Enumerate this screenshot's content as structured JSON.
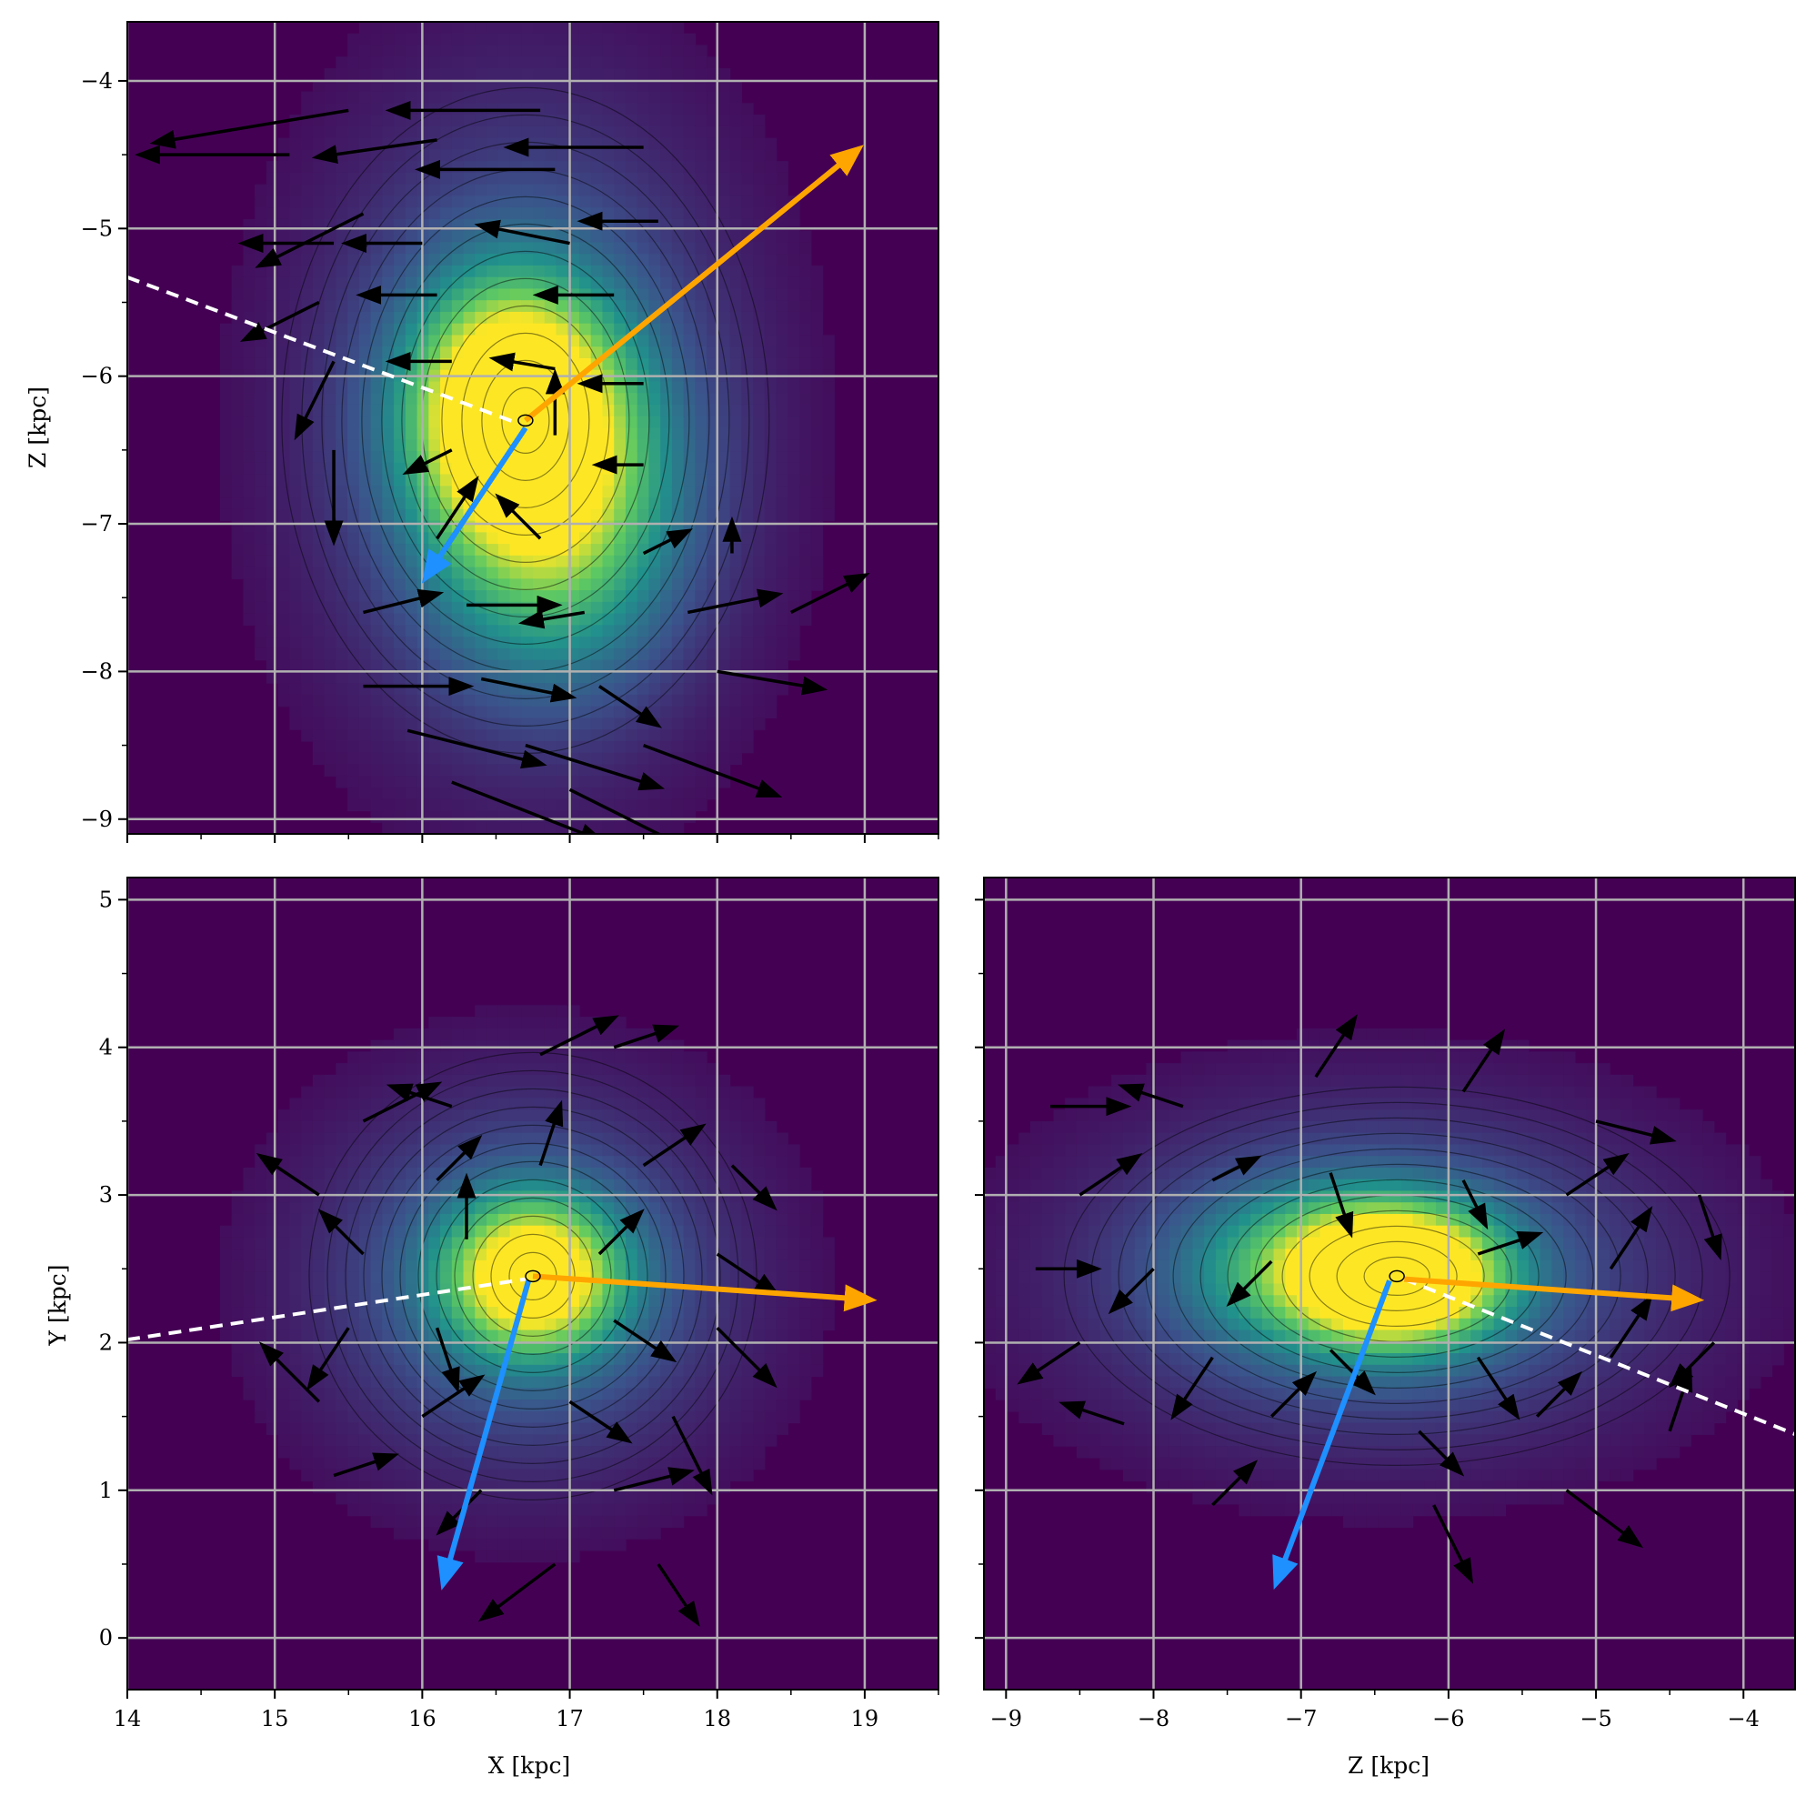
{
  "colors": {
    "density_low": "#440154",
    "density_mid": "#21908c",
    "density_high": "#fde725",
    "grid": "#b0b0b0",
    "orange_arrow": "#ffa500",
    "blue_arrow": "#1e90ff",
    "dashed_line": "#ffffff",
    "quiver": "#000000"
  },
  "chart_data": [
    {
      "panel": "top-left",
      "type": "heatmap",
      "overlays": [
        "contours",
        "quiver",
        "principal-axis-arrows",
        "dashed-line"
      ],
      "xlabel": "",
      "ylabel": "Z [kpc]",
      "xlim": [
        14.0,
        19.5
      ],
      "ylim": [
        -9.1,
        -3.6
      ],
      "y_inverted": true,
      "xticks": [],
      "xtick_values": [
        14,
        15,
        16,
        17,
        18,
        19
      ],
      "yticks": [
        "−4",
        "−5",
        "−6",
        "−7",
        "−8",
        "−9"
      ],
      "ytick_values": [
        -4,
        -5,
        -6,
        -7,
        -8,
        -9
      ],
      "grid": true,
      "density_peaks": [
        {
          "x": 16.6,
          "y": -6.2,
          "sx": 0.45,
          "sy": 0.55,
          "w": 1.0
        },
        {
          "x": 16.9,
          "y": -6.9,
          "sx": 0.55,
          "sy": 0.75,
          "w": 0.6
        },
        {
          "x": 16.7,
          "y": -6.3,
          "sx": 1.0,
          "sy": 1.5,
          "w": 0.35
        }
      ],
      "contour_center": {
        "x": 16.7,
        "y": -6.3
      },
      "arrows": [
        {
          "color": "orange",
          "from": [
            16.7,
            -6.3
          ],
          "to": [
            18.85,
            -4.55
          ]
        },
        {
          "color": "blue",
          "from": [
            16.7,
            -6.35
          ],
          "to": [
            16.1,
            -7.25
          ]
        }
      ],
      "dashed_line": {
        "from": [
          14.0,
          -5.33
        ],
        "to": [
          16.65,
          -6.32
        ]
      },
      "quiver": [
        [
          15.5,
          -4.2,
          -1.2,
          -0.2
        ],
        [
          15.1,
          -4.5,
          -0.9,
          0.0
        ],
        [
          16.8,
          -4.2,
          -0.9,
          0.0
        ],
        [
          17.5,
          -4.45,
          -0.8,
          0.0
        ],
        [
          15.6,
          -4.9,
          -0.6,
          -0.3
        ],
        [
          16.1,
          -4.4,
          -0.7,
          -0.1
        ],
        [
          16.9,
          -4.6,
          -0.8,
          0.0
        ],
        [
          15.4,
          -5.1,
          -0.5,
          0.0
        ],
        [
          16.0,
          -5.1,
          -0.4,
          0.0
        ],
        [
          17.0,
          -5.1,
          -0.5,
          0.1
        ],
        [
          17.6,
          -4.95,
          -0.4,
          0.0
        ],
        [
          15.3,
          -5.5,
          -0.4,
          -0.2
        ],
        [
          16.1,
          -5.45,
          -0.4,
          0.0
        ],
        [
          17.3,
          -5.45,
          -0.4,
          0.0
        ],
        [
          15.4,
          -5.9,
          -0.2,
          -0.4
        ],
        [
          16.2,
          -5.9,
          -0.3,
          0.0
        ],
        [
          16.9,
          -5.95,
          -0.3,
          0.05
        ],
        [
          17.5,
          -6.05,
          -0.3,
          0.0
        ],
        [
          15.4,
          -6.5,
          0.0,
          -0.5
        ],
        [
          16.2,
          -6.5,
          -0.2,
          -0.1
        ],
        [
          16.9,
          -6.4,
          0.0,
          0.3
        ],
        [
          17.5,
          -6.6,
          -0.2,
          0.0
        ],
        [
          16.1,
          -7.1,
          0.2,
          0.3
        ],
        [
          16.8,
          -7.1,
          -0.2,
          0.2
        ],
        [
          17.5,
          -7.2,
          0.2,
          0.1
        ],
        [
          18.1,
          -7.2,
          0.0,
          0.1
        ],
        [
          15.6,
          -7.6,
          0.4,
          0.1
        ],
        [
          16.3,
          -7.55,
          0.5,
          0.0
        ],
        [
          17.1,
          -7.6,
          -0.3,
          -0.05
        ],
        [
          17.8,
          -7.6,
          0.5,
          0.1
        ],
        [
          18.5,
          -7.6,
          0.4,
          0.2
        ],
        [
          15.6,
          -8.1,
          0.6,
          0.0
        ],
        [
          16.4,
          -8.05,
          0.5,
          -0.1
        ],
        [
          17.2,
          -8.1,
          0.3,
          -0.2
        ],
        [
          18.0,
          -8.0,
          0.6,
          -0.1
        ],
        [
          15.9,
          -8.4,
          0.8,
          -0.2
        ],
        [
          16.7,
          -8.5,
          0.8,
          -0.25
        ],
        [
          17.5,
          -8.5,
          0.8,
          -0.3
        ],
        [
          16.2,
          -8.75,
          0.9,
          -0.35
        ],
        [
          17.0,
          -8.8,
          0.8,
          -0.4
        ]
      ]
    },
    {
      "panel": "bottom-left",
      "type": "heatmap",
      "overlays": [
        "contours",
        "quiver",
        "principal-axis-arrows",
        "dashed-line"
      ],
      "xlabel": "X [kpc]",
      "ylabel": "Y [kpc]",
      "xlim": [
        14.0,
        19.5
      ],
      "ylim": [
        -0.35,
        5.15
      ],
      "xticks": [
        "14",
        "15",
        "16",
        "17",
        "18",
        "19"
      ],
      "xtick_values": [
        14,
        15,
        16,
        17,
        18,
        19
      ],
      "yticks": [
        "0",
        "1",
        "2",
        "3",
        "4",
        "5"
      ],
      "ytick_values": [
        0,
        1,
        2,
        3,
        4,
        5
      ],
      "grid": true,
      "density_peaks": [
        {
          "x": 16.75,
          "y": 2.45,
          "sx": 0.4,
          "sy": 0.35,
          "w": 1.0
        },
        {
          "x": 16.7,
          "y": 2.4,
          "sx": 1.0,
          "sy": 0.9,
          "w": 0.35
        }
      ],
      "contour_center": {
        "x": 16.75,
        "y": 2.45
      },
      "arrows": [
        {
          "color": "orange",
          "from": [
            16.75,
            2.45
          ],
          "to": [
            18.9,
            2.3
          ]
        },
        {
          "color": "blue",
          "from": [
            16.72,
            2.42
          ],
          "to": [
            16.18,
            0.5
          ]
        }
      ],
      "dashed_line": {
        "from": [
          14.0,
          2.02
        ],
        "to": [
          16.7,
          2.43
        ]
      },
      "quiver": [
        [
          15.3,
          3.0,
          -0.3,
          0.2
        ],
        [
          15.6,
          3.5,
          0.4,
          0.2
        ],
        [
          16.2,
          3.6,
          -0.3,
          0.1
        ],
        [
          16.8,
          3.95,
          0.4,
          0.2
        ],
        [
          17.3,
          4.0,
          0.3,
          0.1
        ],
        [
          16.1,
          3.1,
          0.2,
          0.2
        ],
        [
          16.8,
          3.2,
          0.1,
          0.3
        ],
        [
          17.5,
          3.2,
          0.3,
          0.2
        ],
        [
          18.1,
          3.2,
          0.2,
          -0.2
        ],
        [
          15.6,
          2.6,
          -0.2,
          0.2
        ],
        [
          16.3,
          2.7,
          0.0,
          0.3
        ],
        [
          17.2,
          2.6,
          0.2,
          0.2
        ],
        [
          18.0,
          2.6,
          0.3,
          -0.2
        ],
        [
          15.5,
          2.1,
          -0.2,
          -0.3
        ],
        [
          16.1,
          2.1,
          0.1,
          -0.3
        ],
        [
          17.3,
          2.15,
          0.3,
          -0.2
        ],
        [
          18.0,
          2.1,
          0.3,
          -0.3
        ],
        [
          15.3,
          1.6,
          -0.3,
          0.3
        ],
        [
          16.0,
          1.5,
          0.3,
          0.2
        ],
        [
          17.0,
          1.6,
          0.3,
          -0.2
        ],
        [
          17.7,
          1.5,
          0.2,
          -0.4
        ],
        [
          15.4,
          1.1,
          0.3,
          0.1
        ],
        [
          16.4,
          1.0,
          -0.2,
          -0.2
        ],
        [
          17.3,
          1.0,
          0.4,
          0.1
        ],
        [
          16.9,
          0.5,
          -0.4,
          -0.3
        ],
        [
          17.6,
          0.5,
          0.2,
          -0.3
        ]
      ]
    },
    {
      "panel": "bottom-right",
      "type": "heatmap",
      "overlays": [
        "contours",
        "quiver",
        "principal-axis-arrows",
        "dashed-line"
      ],
      "xlabel": "Z [kpc]",
      "ylabel": "",
      "xlim": [
        -9.15,
        -3.65
      ],
      "ylim": [
        -0.35,
        5.15
      ],
      "xticks": [
        "−9",
        "−8",
        "−7",
        "−6",
        "−5",
        "−4"
      ],
      "xtick_values": [
        -9,
        -8,
        -7,
        -6,
        -5,
        -4
      ],
      "yticks": [],
      "ytick_values": [
        0,
        1,
        2,
        3,
        4,
        5
      ],
      "grid": true,
      "density_peaks": [
        {
          "x": -6.3,
          "y": 2.45,
          "sx": 0.45,
          "sy": 0.3,
          "w": 1.0
        },
        {
          "x": -6.8,
          "y": 2.5,
          "sx": 0.6,
          "sy": 0.35,
          "w": 0.55
        },
        {
          "x": -6.5,
          "y": 2.45,
          "sx": 1.4,
          "sy": 0.8,
          "w": 0.35
        }
      ],
      "contour_center": {
        "x": -6.35,
        "y": 2.45
      },
      "arrows": [
        {
          "color": "orange",
          "from": [
            -6.3,
            2.43
          ],
          "to": [
            -4.45,
            2.3
          ]
        },
        {
          "color": "blue",
          "from": [
            -6.4,
            2.42
          ],
          "to": [
            -7.12,
            0.5
          ]
        }
      ],
      "dashed_line": {
        "from": [
          -6.3,
          2.43
        ],
        "to": [
          -3.65,
          1.38
        ]
      },
      "quiver": [
        [
          -8.7,
          3.6,
          0.4,
          0.0
        ],
        [
          -7.8,
          3.6,
          -0.3,
          0.1
        ],
        [
          -6.9,
          3.8,
          0.2,
          0.3
        ],
        [
          -5.9,
          3.7,
          0.2,
          0.3
        ],
        [
          -5.0,
          3.5,
          0.4,
          -0.1
        ],
        [
          -8.5,
          3.0,
          0.3,
          0.2
        ],
        [
          -7.6,
          3.1,
          0.2,
          0.1
        ],
        [
          -6.8,
          3.15,
          0.1,
          -0.3
        ],
        [
          -5.9,
          3.1,
          0.1,
          -0.2
        ],
        [
          -5.2,
          3.0,
          0.3,
          0.2
        ],
        [
          -4.3,
          3.0,
          0.1,
          -0.3
        ],
        [
          -8.8,
          2.5,
          0.3,
          0.0
        ],
        [
          -8.0,
          2.5,
          -0.2,
          -0.2
        ],
        [
          -7.2,
          2.55,
          -0.2,
          -0.2
        ],
        [
          -5.8,
          2.6,
          0.3,
          0.1
        ],
        [
          -4.9,
          2.5,
          0.2,
          0.3
        ],
        [
          -8.5,
          2.0,
          -0.3,
          -0.2
        ],
        [
          -7.6,
          1.9,
          -0.2,
          -0.3
        ],
        [
          -6.8,
          1.95,
          0.2,
          -0.2
        ],
        [
          -5.8,
          1.9,
          0.2,
          -0.3
        ],
        [
          -4.9,
          1.9,
          0.2,
          0.3
        ],
        [
          -4.2,
          2.0,
          -0.2,
          -0.2
        ],
        [
          -8.2,
          1.45,
          -0.3,
          0.1
        ],
        [
          -7.2,
          1.5,
          0.2,
          0.2
        ],
        [
          -6.2,
          1.4,
          0.2,
          -0.2
        ],
        [
          -5.4,
          1.5,
          0.2,
          0.2
        ],
        [
          -4.5,
          1.4,
          0.1,
          0.3
        ],
        [
          -7.6,
          0.9,
          0.2,
          0.2
        ],
        [
          -6.1,
          0.9,
          0.2,
          -0.4
        ],
        [
          -5.2,
          1.0,
          0.4,
          -0.3
        ]
      ]
    }
  ]
}
